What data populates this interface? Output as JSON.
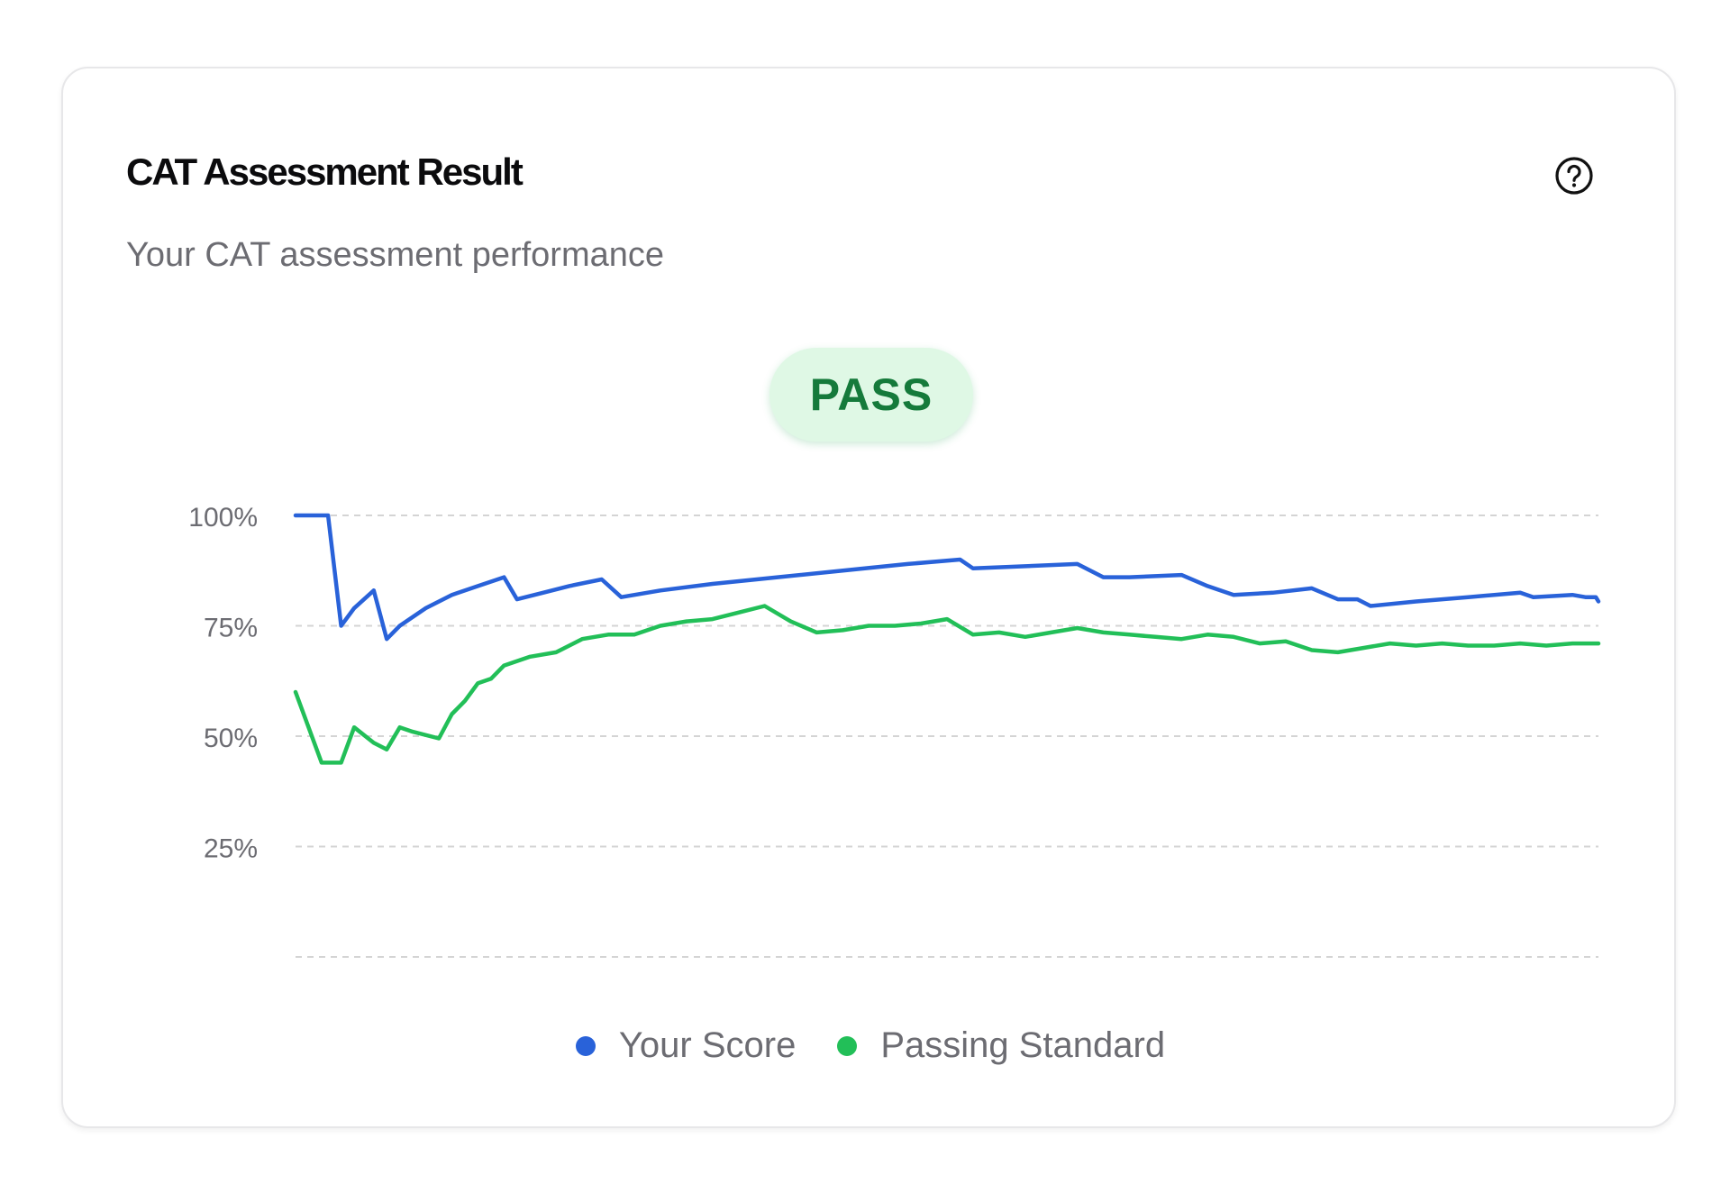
{
  "card": {
    "title": "CAT Assessment Result",
    "subtitle": "Your CAT assessment performance",
    "help_icon": "question-circle-icon",
    "status": "PASS"
  },
  "colors": {
    "score": "#2962d9",
    "standard": "#22bf58",
    "badge_bg": "#dff8e5",
    "badge_text": "#157a3b",
    "grid": "#d4d4d4"
  },
  "chart_data": {
    "type": "line",
    "title": "",
    "xlabel": "",
    "ylabel": "",
    "ylim": [
      0,
      100
    ],
    "y_ticks": [
      "100%",
      "75%",
      "50%",
      "25%",
      ""
    ],
    "y_tick_values": [
      100,
      75,
      50,
      25,
      0
    ],
    "grid": true,
    "x_range": [
      0,
      100
    ],
    "legend_position": "bottom",
    "series": [
      {
        "name": "Your Score",
        "color": "#2962d9",
        "points": [
          [
            0,
            100
          ],
          [
            2.5,
            100
          ],
          [
            3.5,
            75
          ],
          [
            4.5,
            79
          ],
          [
            6,
            83
          ],
          [
            7,
            72
          ],
          [
            8,
            75
          ],
          [
            10,
            79
          ],
          [
            12,
            82
          ],
          [
            14,
            84
          ],
          [
            16,
            86
          ],
          [
            17,
            81
          ],
          [
            19,
            82.5
          ],
          [
            21,
            84
          ],
          [
            23.5,
            85.5
          ],
          [
            25,
            81.5
          ],
          [
            28,
            83
          ],
          [
            32,
            84.5
          ],
          [
            37,
            86
          ],
          [
            42,
            87.5
          ],
          [
            47,
            89
          ],
          [
            51,
            90
          ],
          [
            52,
            88
          ],
          [
            56,
            88.5
          ],
          [
            60,
            89
          ],
          [
            62,
            86
          ],
          [
            64,
            86
          ],
          [
            68,
            86.5
          ],
          [
            70,
            84
          ],
          [
            72,
            82
          ],
          [
            75,
            82.5
          ],
          [
            78,
            83.5
          ],
          [
            80,
            81
          ],
          [
            81.5,
            81
          ],
          [
            82.5,
            79.5
          ],
          [
            86,
            80.5
          ],
          [
            90,
            81.5
          ],
          [
            94,
            82.5
          ],
          [
            95,
            81.5
          ],
          [
            98,
            82
          ],
          [
            99,
            81.5
          ],
          [
            99.8,
            81.5
          ],
          [
            100,
            80.5
          ]
        ]
      },
      {
        "name": "Passing Standard",
        "color": "#22bf58",
        "points": [
          [
            0,
            60
          ],
          [
            2,
            44
          ],
          [
            3.5,
            44
          ],
          [
            4.5,
            52
          ],
          [
            6,
            48.5
          ],
          [
            7,
            47
          ],
          [
            8,
            52
          ],
          [
            9,
            51
          ],
          [
            11,
            49.5
          ],
          [
            12,
            55
          ],
          [
            13,
            58
          ],
          [
            14,
            62
          ],
          [
            15,
            63
          ],
          [
            16,
            66
          ],
          [
            18,
            68
          ],
          [
            20,
            69
          ],
          [
            22,
            72
          ],
          [
            24,
            73
          ],
          [
            26,
            73
          ],
          [
            28,
            75
          ],
          [
            30,
            76
          ],
          [
            32,
            76.5
          ],
          [
            34,
            78
          ],
          [
            36,
            79.5
          ],
          [
            38,
            76
          ],
          [
            40,
            73.5
          ],
          [
            42,
            74
          ],
          [
            44,
            75
          ],
          [
            46,
            75
          ],
          [
            48,
            75.5
          ],
          [
            50,
            76.5
          ],
          [
            52,
            73
          ],
          [
            54,
            73.5
          ],
          [
            56,
            72.5
          ],
          [
            58,
            73.5
          ],
          [
            60,
            74.5
          ],
          [
            62,
            73.5
          ],
          [
            64,
            73
          ],
          [
            66,
            72.5
          ],
          [
            68,
            72
          ],
          [
            70,
            73
          ],
          [
            72,
            72.5
          ],
          [
            74,
            71
          ],
          [
            76,
            71.5
          ],
          [
            78,
            69.5
          ],
          [
            80,
            69
          ],
          [
            82,
            70
          ],
          [
            84,
            71
          ],
          [
            86,
            70.5
          ],
          [
            88,
            71
          ],
          [
            90,
            70.5
          ],
          [
            92,
            70.5
          ],
          [
            94,
            71
          ],
          [
            96,
            70.5
          ],
          [
            98,
            71
          ],
          [
            100,
            71
          ]
        ]
      }
    ]
  }
}
